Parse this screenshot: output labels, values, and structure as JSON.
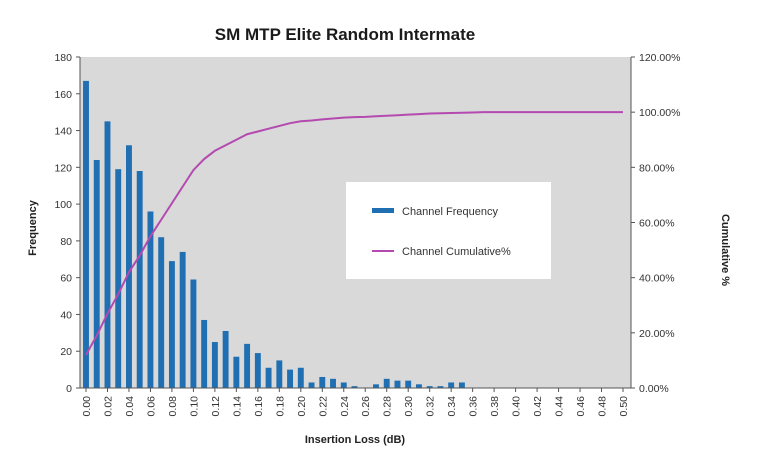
{
  "chart_data": {
    "type": "bar",
    "title": "SM MTP Elite Random Intermate",
    "xlabel": "Insertion Loss (dB)",
    "ylabel": "Frequency",
    "y2label": "Cumulative %",
    "ylim": [
      0,
      180
    ],
    "y2lim": [
      0,
      120
    ],
    "yticks": [
      "0",
      "20",
      "40",
      "60",
      "80",
      "100",
      "120",
      "140",
      "160",
      "180"
    ],
    "y2ticks": [
      "0.00%",
      "20.00%",
      "40.00%",
      "60.00%",
      "80.00%",
      "100.00%",
      "120.00%"
    ],
    "xticks": [
      "0.00",
      "0.02",
      "0.04",
      "0.06",
      "0.08",
      "0.10",
      "0.12",
      "0.14",
      "0.16",
      "0.18",
      "0.20",
      "0.22",
      "0.24",
      "0.26",
      "0.28",
      "0.30",
      "0.32",
      "0.34",
      "0.36",
      "0.38",
      "0.40",
      "0.42",
      "0.44",
      "0.46",
      "0.48",
      "0.50"
    ],
    "x": [
      0.0,
      0.01,
      0.02,
      0.03,
      0.04,
      0.05,
      0.06,
      0.07,
      0.08,
      0.09,
      0.1,
      0.11,
      0.12,
      0.13,
      0.14,
      0.15,
      0.16,
      0.17,
      0.18,
      0.19,
      0.2,
      0.21,
      0.22,
      0.23,
      0.24,
      0.25,
      0.26,
      0.27,
      0.28,
      0.29,
      0.3,
      0.31,
      0.32,
      0.33,
      0.34,
      0.35,
      0.36,
      0.37,
      0.38,
      0.39,
      0.4,
      0.41,
      0.42,
      0.43,
      0.44,
      0.45,
      0.46,
      0.47,
      0.48,
      0.49,
      0.5
    ],
    "series": [
      {
        "name": "Channel Frequency",
        "kind": "bar",
        "color": "#1f6fb2",
        "values": [
          167,
          124,
          145,
          119,
          132,
          118,
          96,
          82,
          69,
          74,
          59,
          37,
          25,
          31,
          17,
          24,
          19,
          11,
          15,
          10,
          11,
          3,
          6,
          5,
          3,
          1,
          0,
          2,
          5,
          4,
          4,
          2,
          1,
          1,
          3,
          3,
          0,
          0,
          0,
          0,
          0,
          0,
          0,
          0,
          0,
          0,
          0,
          0,
          0,
          0,
          0
        ]
      },
      {
        "name": "Channel Cumulative%",
        "kind": "line",
        "color": "#b44ab0",
        "values": [
          12,
          19,
          27,
          34,
          42,
          48,
          55,
          61,
          67,
          73,
          79,
          83,
          86,
          88,
          90,
          92,
          93,
          94,
          95,
          96,
          96.7,
          97,
          97.4,
          97.7,
          98,
          98.2,
          98.3,
          98.5,
          98.7,
          98.9,
          99.1,
          99.3,
          99.5,
          99.6,
          99.7,
          99.8,
          99.9,
          100,
          100,
          100,
          100,
          100,
          100,
          100,
          100,
          100,
          100,
          100,
          100,
          100,
          100
        ]
      }
    ],
    "legend_placement": "center-right",
    "plot_background": "#d9d9d9"
  }
}
